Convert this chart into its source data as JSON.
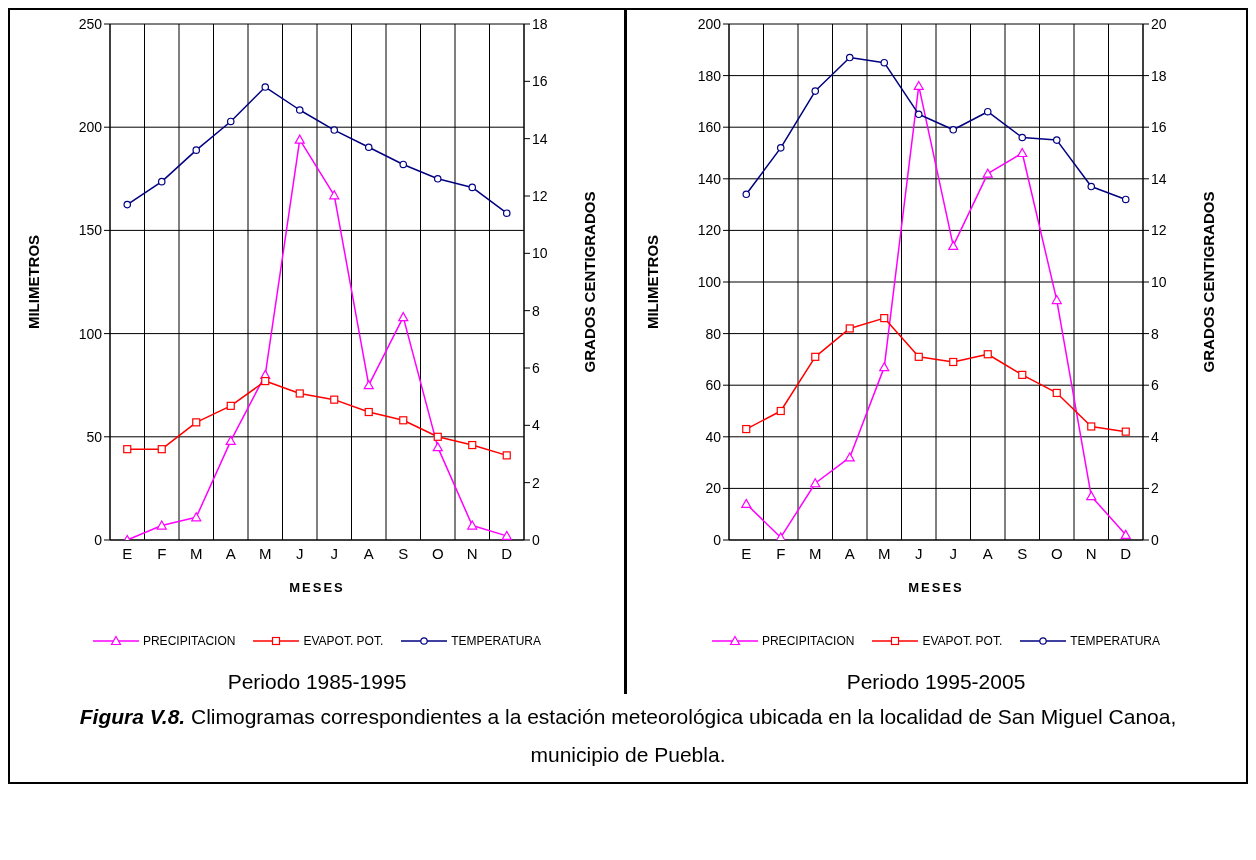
{
  "chart_data": [
    {
      "type": "line",
      "ylabel": "MILIMETROS",
      "y2label": "GRADOS CENTIGRADOS",
      "xlabel": "MESES",
      "categories": [
        "E",
        "F",
        "M",
        "A",
        "M",
        "J",
        "J",
        "A",
        "S",
        "O",
        "N",
        "D"
      ],
      "ylim": [
        0,
        250
      ],
      "yticks": [
        0,
        50,
        100,
        150,
        200,
        250
      ],
      "y2lim": [
        0,
        18
      ],
      "y2ticks": [
        0,
        2,
        4,
        6,
        8,
        10,
        12,
        14,
        16,
        18
      ],
      "grid": true,
      "legend": "bottom",
      "annotations": [
        "Periodo 1985-1995"
      ],
      "series": [
        {
          "name": "PRECIPITACION",
          "color": "#ff00ff",
          "marker": "triangle",
          "values": [
            0,
            7,
            11,
            48,
            80,
            194,
            167,
            75,
            108,
            45,
            7,
            2
          ]
        },
        {
          "name": "EVAPOT. POT.",
          "color": "#ff0000",
          "marker": "square",
          "values": [
            44,
            44,
            57,
            65,
            77,
            71,
            68,
            62,
            58,
            50,
            46,
            41
          ]
        },
        {
          "name": "TEMPERATURA",
          "color": "#000080",
          "marker": "circle",
          "axis": "y2",
          "values": [
            11.7,
            12.5,
            13.6,
            14.6,
            15.8,
            15.0,
            14.3,
            13.7,
            13.1,
            12.6,
            12.3,
            11.4
          ]
        }
      ]
    },
    {
      "type": "line",
      "ylabel": "MILIMETROS",
      "y2label": "GRADOS CENTIGRADOS",
      "xlabel": "MESES",
      "categories": [
        "E",
        "F",
        "M",
        "A",
        "M",
        "J",
        "J",
        "A",
        "S",
        "O",
        "N",
        "D"
      ],
      "ylim": [
        0,
        200
      ],
      "yticks": [
        0,
        20,
        40,
        60,
        80,
        100,
        120,
        140,
        160,
        180,
        200
      ],
      "y2lim": [
        0,
        20
      ],
      "y2ticks": [
        0,
        2,
        4,
        6,
        8,
        10,
        12,
        14,
        16,
        18,
        20
      ],
      "grid": true,
      "legend": "bottom",
      "annotations": [
        "Periodo 1995-2005",
        "Figura V.8.",
        "Climogramas correspondientes a la estación meteorológica ubicada en la localidad de San Miguel Canoa, municipio de Puebla."
      ],
      "series": [
        {
          "name": "PRECIPITACION",
          "color": "#ff00ff",
          "marker": "triangle",
          "values": [
            14,
            1,
            22,
            32,
            67,
            176,
            114,
            142,
            150,
            93,
            17,
            2
          ]
        },
        {
          "name": "EVAPOT. POT.",
          "color": "#ff0000",
          "marker": "square",
          "values": [
            43,
            50,
            71,
            82,
            86,
            71,
            69,
            72,
            64,
            57,
            44,
            42
          ]
        },
        {
          "name": "TEMPERATURA",
          "color": "#000080",
          "marker": "circle",
          "axis": "y2",
          "values": [
            13.4,
            15.2,
            17.4,
            18.7,
            18.5,
            16.5,
            15.9,
            16.6,
            15.6,
            15.5,
            13.7,
            13.2
          ]
        }
      ]
    }
  ]
}
